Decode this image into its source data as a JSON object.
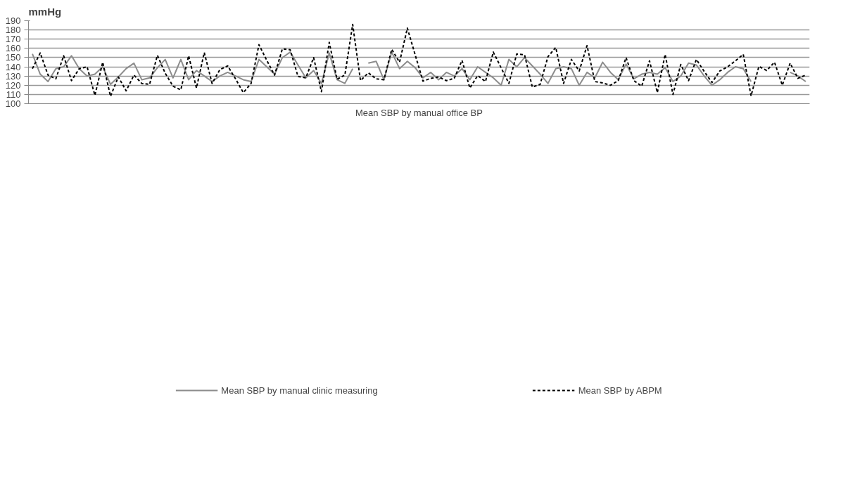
{
  "chart_data": {
    "type": "line",
    "ylabel": "mmHg",
    "xlabel": "Mean SBP by manual office BP",
    "categories": [
      null,
      null,
      null,
      null,
      null,
      null,
      null,
      null,
      null,
      null,
      null,
      null,
      null,
      null,
      null,
      null,
      null,
      null,
      null,
      null,
      null,
      null,
      null,
      null,
      null,
      null,
      null,
      null,
      null,
      null,
      null,
      null,
      null,
      null,
      null,
      null,
      null,
      null,
      null,
      null,
      null,
      null,
      null,
      null,
      null,
      null,
      null,
      null,
      null,
      null,
      null,
      null,
      null,
      null,
      null,
      null,
      null,
      null,
      null,
      null,
      null,
      null,
      null,
      null,
      null,
      null,
      null,
      null,
      null,
      null,
      null,
      null,
      null,
      null,
      null,
      null,
      null,
      null,
      null,
      null,
      null,
      null,
      null,
      null,
      null,
      null,
      null,
      null,
      null,
      null,
      null,
      null,
      null,
      null,
      null,
      null,
      null,
      null,
      null,
      null
    ],
    "series": [
      {
        "name": "Mean SBP by manual clinic measuring",
        "color": "#8c8c8c",
        "line_style": "solid",
        "values": [
          154,
          132,
          124,
          138,
          140,
          152,
          138,
          130,
          132,
          140,
          121,
          129,
          138,
          144,
          126,
          128,
          139,
          148,
          128,
          148,
          126,
          136,
          130,
          124,
          130,
          134,
          130,
          126,
          124,
          148,
          140,
          132,
          150,
          156,
          142,
          128,
          136,
          122,
          155,
          126,
          122,
          138,
          null,
          144,
          146,
          126,
          156,
          138,
          146,
          139,
          128,
          134,
          126,
          134,
          130,
          138,
          126,
          140,
          134,
          128,
          120,
          148,
          140,
          150,
          141,
          132,
          122,
          138,
          140,
          138,
          120,
          134,
          128,
          145,
          134,
          126,
          143,
          127,
          132,
          134,
          132,
          139,
          124,
          130,
          144,
          142,
          130,
          120,
          126,
          134,
          140,
          138,
          124,
          null,
          null,
          null,
          null,
          134,
          130,
          124
        ]
      },
      {
        "name": "Mean SBP by ABPM",
        "color": "#000000",
        "line_style": "dashed",
        "values": [
          138,
          155,
          131,
          127,
          152,
          125,
          138,
          140,
          109,
          145,
          108,
          129,
          114,
          131,
          122,
          121,
          152.5,
          133,
          119,
          115,
          152,
          117,
          155.5,
          122,
          137,
          141,
          127,
          112,
          122,
          164,
          147,
          131,
          159.5,
          158.5,
          129.5,
          128,
          150,
          113,
          166.5,
          126.5,
          131,
          186,
          125,
          133.5,
          127,
          126,
          159,
          145,
          182,
          153,
          124.5,
          127.5,
          129,
          125,
          127.5,
          147,
          117,
          130.5,
          124,
          156,
          139,
          122,
          154,
          153,
          118,
          121,
          151,
          161,
          122,
          148,
          135.5,
          163,
          124,
          122.5,
          120,
          125,
          150,
          125,
          119,
          146.5,
          112,
          153.5,
          110,
          142.5,
          125,
          148,
          135,
          123,
          135.5,
          140,
          146.5,
          153.5,
          108.5,
          140.5,
          136,
          145,
          120,
          144,
          127.5,
          131
        ]
      }
    ],
    "ylim": [
      100,
      190
    ],
    "yticks": [
      100,
      110,
      120,
      130,
      140,
      150,
      160,
      170,
      180,
      190
    ],
    "grid": "y",
    "legend": "bottom",
    "tick_labels": "y"
  }
}
